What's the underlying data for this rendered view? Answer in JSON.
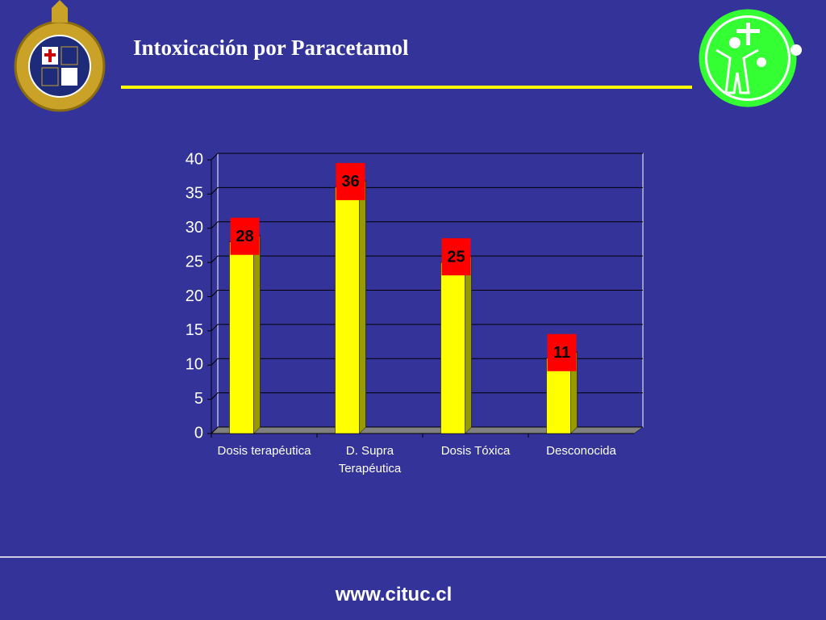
{
  "chart_data": {
    "type": "bar",
    "title": "Intoxicación por Paracetamol",
    "categories": [
      "Dosis terapéutica",
      "D. Supra Terapéutica",
      "Dosis Tóxica",
      "Desconocida"
    ],
    "values": [
      28,
      36,
      25,
      11
    ],
    "color": "#ffff00",
    "ylim": [
      0,
      40
    ],
    "yticks": [
      0,
      5,
      10,
      15,
      20,
      25,
      30,
      35,
      40
    ],
    "grid": true
  },
  "footer": "www.cituc.cl"
}
